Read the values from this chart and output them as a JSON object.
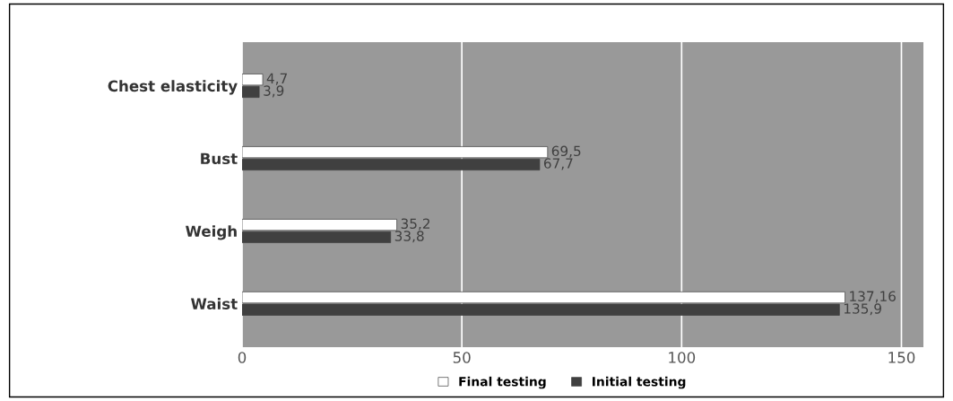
{
  "chart_data": {
    "type": "bar",
    "orientation": "horizontal",
    "categories": [
      "Chest elasticity",
      "Bust",
      "Weigh",
      "Waist"
    ],
    "series": [
      {
        "name": "Final testing",
        "color": "#ffffff",
        "values": [
          4.7,
          69.5,
          35.2,
          137.16
        ],
        "value_labels": [
          "4,7",
          "69,5",
          "35,2",
          "137,16"
        ]
      },
      {
        "name": "Initial testing",
        "color": "#404040",
        "values": [
          3.9,
          67.7,
          33.8,
          135.9
        ],
        "value_labels": [
          "3,9",
          "67,7",
          "33,8",
          "135,9"
        ]
      }
    ],
    "xlim": [
      0,
      155
    ],
    "xticks": [
      0,
      50,
      100,
      150
    ],
    "grid": "x",
    "legend": "bottom"
  }
}
